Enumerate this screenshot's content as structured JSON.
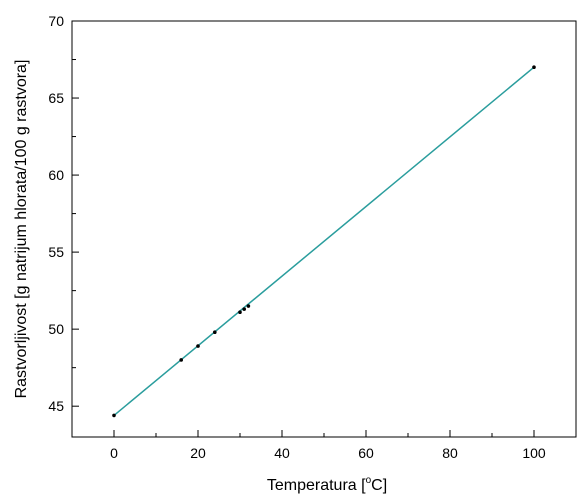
{
  "chart_data": {
    "type": "scatter",
    "title": "",
    "xlabel": "Temperatura [",
    "xlabel_sup": "o",
    "xlabel_unit": "C]",
    "ylabel": "Rastvorljivost [g natrijum hlorata/100 g rastvora]",
    "xlim": [
      -10,
      110
    ],
    "ylim": [
      43,
      70
    ],
    "x_ticks": [
      0,
      20,
      40,
      60,
      80,
      100
    ],
    "y_ticks": [
      45,
      50,
      55,
      60,
      65,
      70
    ],
    "grid": false,
    "legend": "none",
    "series": [
      {
        "x": [
          0,
          16,
          20,
          24,
          30,
          31,
          32,
          100
        ],
        "y": [
          44.4,
          48.0,
          48.9,
          49.8,
          51.1,
          51.3,
          51.5,
          67.0
        ],
        "marker_color": "#000000"
      }
    ],
    "fit_line": {
      "x": [
        0,
        100
      ],
      "y": [
        44.4,
        67.0
      ],
      "color": "#2a9d9d"
    }
  }
}
